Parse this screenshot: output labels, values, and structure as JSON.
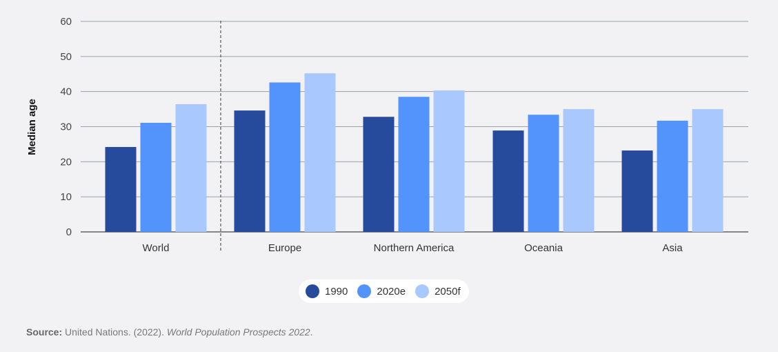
{
  "chart_data": {
    "type": "bar",
    "categories": [
      "World",
      "Europe",
      "Northern America",
      "Oceania",
      "Asia"
    ],
    "series": [
      {
        "name": "1990",
        "color": "#264a9c",
        "values": [
          24.2,
          34.6,
          32.8,
          28.9,
          23.2
        ]
      },
      {
        "name": "2020e",
        "color": "#5294fb",
        "values": [
          31.1,
          42.6,
          38.5,
          33.4,
          31.7
        ]
      },
      {
        "name": "2050f",
        "color": "#a9c8fd",
        "values": [
          36.4,
          45.2,
          40.3,
          35.0,
          35.0
        ]
      }
    ],
    "ylabel": "Median age",
    "ylim": [
      0,
      60
    ],
    "yticks": [
      0,
      10,
      20,
      30,
      40,
      50,
      60
    ],
    "grid": true,
    "legend": "bottom-center",
    "separator_after_category": "World"
  },
  "source": {
    "label": "Source:",
    "text": " United Nations. (2022). ",
    "title": "World Population Prospects 2022",
    "end": "."
  }
}
